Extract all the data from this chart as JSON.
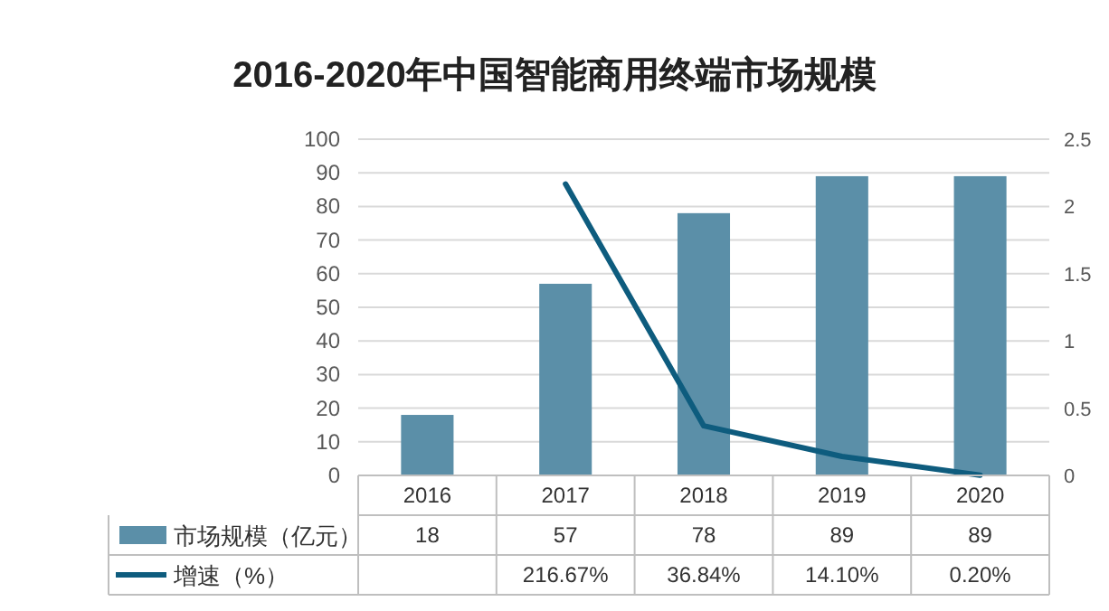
{
  "chart_data": {
    "type": "bar",
    "title": "2016-2020年中国智能商用终端市场规模",
    "categories": [
      "2016",
      "2017",
      "2018",
      "2019",
      "2020"
    ],
    "series": [
      {
        "name": "市场规模（亿元）",
        "color": "#5b8fa8",
        "values": [
          18,
          57,
          78,
          89,
          89
        ],
        "value_labels": [
          "18",
          "57",
          "78",
          "89",
          "89"
        ]
      },
      {
        "name": "增速（%）",
        "type": "line",
        "axis": "y2",
        "color": "#0e5c7e",
        "values": [
          null,
          2.1667,
          0.3684,
          0.141,
          0.002
        ],
        "value_labels": [
          null,
          "216.67%",
          "36.84%",
          "14.10%",
          "0.20%"
        ]
      }
    ],
    "ylim": [
      0,
      100
    ],
    "yticks": [
      0,
      10,
      20,
      30,
      40,
      50,
      60,
      70,
      80,
      90,
      100
    ],
    "y2lim": [
      0,
      2.5
    ],
    "y2ticks": [
      0,
      0.5,
      1,
      1.5,
      2,
      2.5
    ],
    "grid": "y",
    "legend": "bottom",
    "line_style": "solid",
    "marker": "none"
  }
}
